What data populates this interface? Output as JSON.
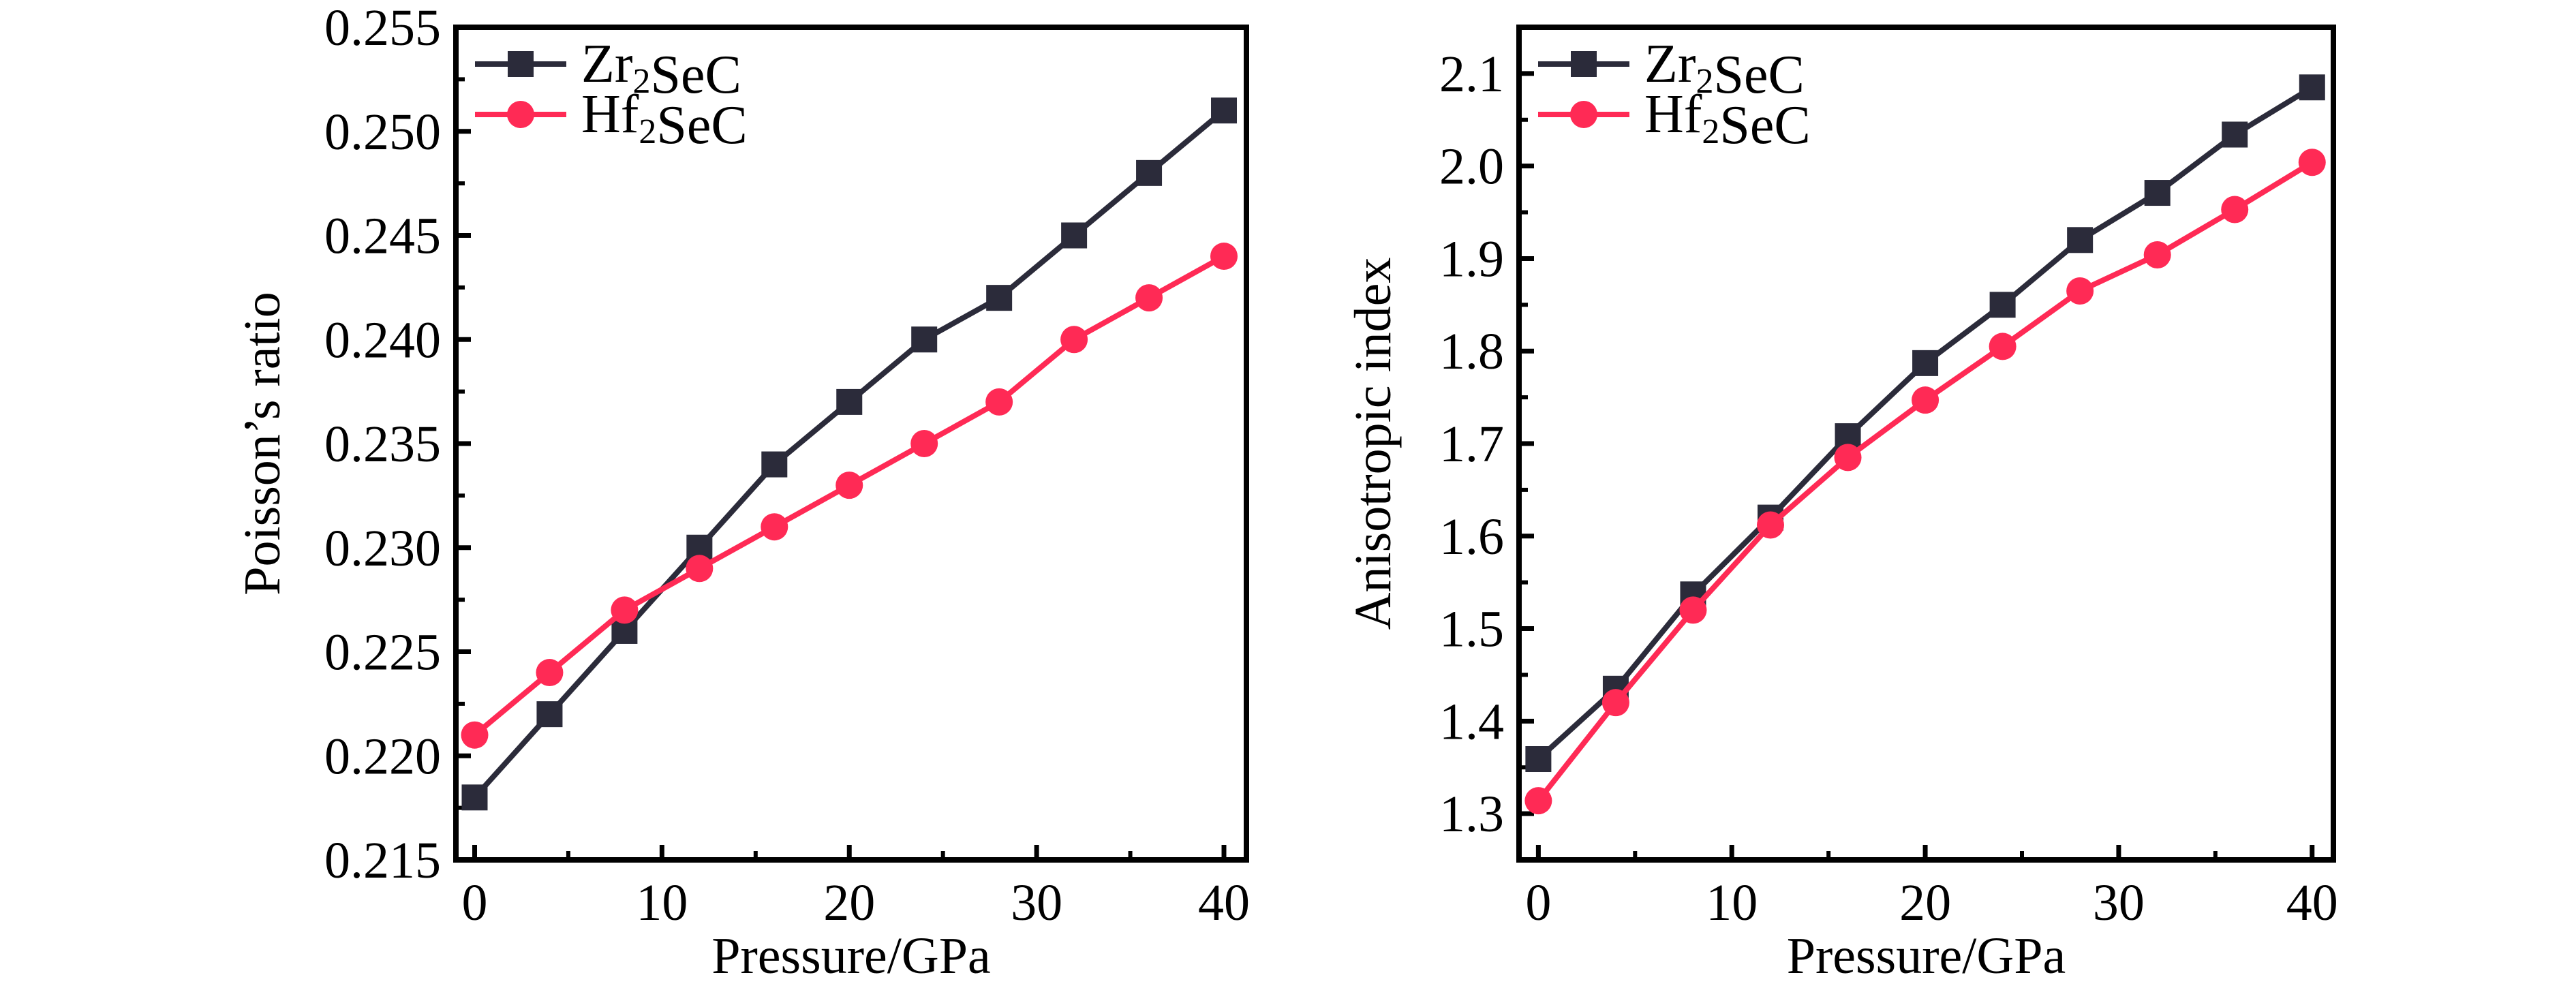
{
  "chart_data": [
    {
      "type": "line",
      "title": "",
      "xlabel": "Pressure/GPa",
      "ylabel": "Poisson’s ratio",
      "xlim": [
        -1,
        41.2
      ],
      "ylim": [
        0.215,
        0.255
      ],
      "xticks": [
        0,
        10,
        20,
        30,
        40
      ],
      "xtick_labels": [
        "0",
        "10",
        "20",
        "30",
        "40"
      ],
      "yticks": [
        0.215,
        0.22,
        0.225,
        0.23,
        0.235,
        0.24,
        0.245,
        0.25,
        0.255
      ],
      "ytick_labels": [
        "0.215",
        "0.220",
        "0.225",
        "0.230",
        "0.235",
        "0.240",
        "0.245",
        "0.250",
        "0.255"
      ],
      "grid": false,
      "legend_position": "top-left",
      "x": [
        0,
        4,
        8,
        12,
        16,
        20,
        24,
        28,
        32,
        36,
        40
      ],
      "series": [
        {
          "name": "Zr₂SeC",
          "marker": "square",
          "color": "#2b2b3a",
          "values": [
            0.218,
            0.222,
            0.226,
            0.23,
            0.234,
            0.237,
            0.24,
            0.242,
            0.245,
            0.248,
            0.251
          ]
        },
        {
          "name": "Hf₂SeC",
          "marker": "circle",
          "color": "#ff2a55",
          "values": [
            0.221,
            0.224,
            0.227,
            0.229,
            0.231,
            0.233,
            0.235,
            0.237,
            0.24,
            0.242,
            0.244
          ]
        }
      ]
    },
    {
      "type": "line",
      "title": "",
      "xlabel": "Pressure/GPa",
      "ylabel": "Anisotropic index",
      "xlim": [
        -1,
        41.1
      ],
      "ylim": [
        1.25,
        2.15
      ],
      "xticks": [
        0,
        10,
        20,
        30,
        40
      ],
      "xtick_labels": [
        "0",
        "10",
        "20",
        "30",
        "40"
      ],
      "yticks": [
        1.3,
        1.4,
        1.5,
        1.6,
        1.7,
        1.8,
        1.9,
        2.0,
        2.1
      ],
      "ytick_labels": [
        "1.3",
        "1.4",
        "1.5",
        "1.6",
        "1.7",
        "1.8",
        "1.9",
        "2.0",
        "2.1"
      ],
      "grid": false,
      "legend_position": "top-left",
      "x": [
        0,
        4,
        8,
        12,
        16,
        20,
        24,
        28,
        32,
        36,
        40
      ],
      "series": [
        {
          "name": "Zr₂SeC",
          "marker": "square",
          "color": "#2b2b3a",
          "values": [
            1.359,
            1.435,
            1.537,
            1.62,
            1.708,
            1.787,
            1.85,
            1.92,
            1.971,
            2.034,
            2.085
          ]
        },
        {
          "name": "Hf₂SeC",
          "marker": "circle",
          "color": "#ff2a55",
          "values": [
            1.314,
            1.42,
            1.52,
            1.612,
            1.685,
            1.747,
            1.805,
            1.865,
            1.904,
            1.953,
            2.004
          ]
        }
      ]
    }
  ]
}
